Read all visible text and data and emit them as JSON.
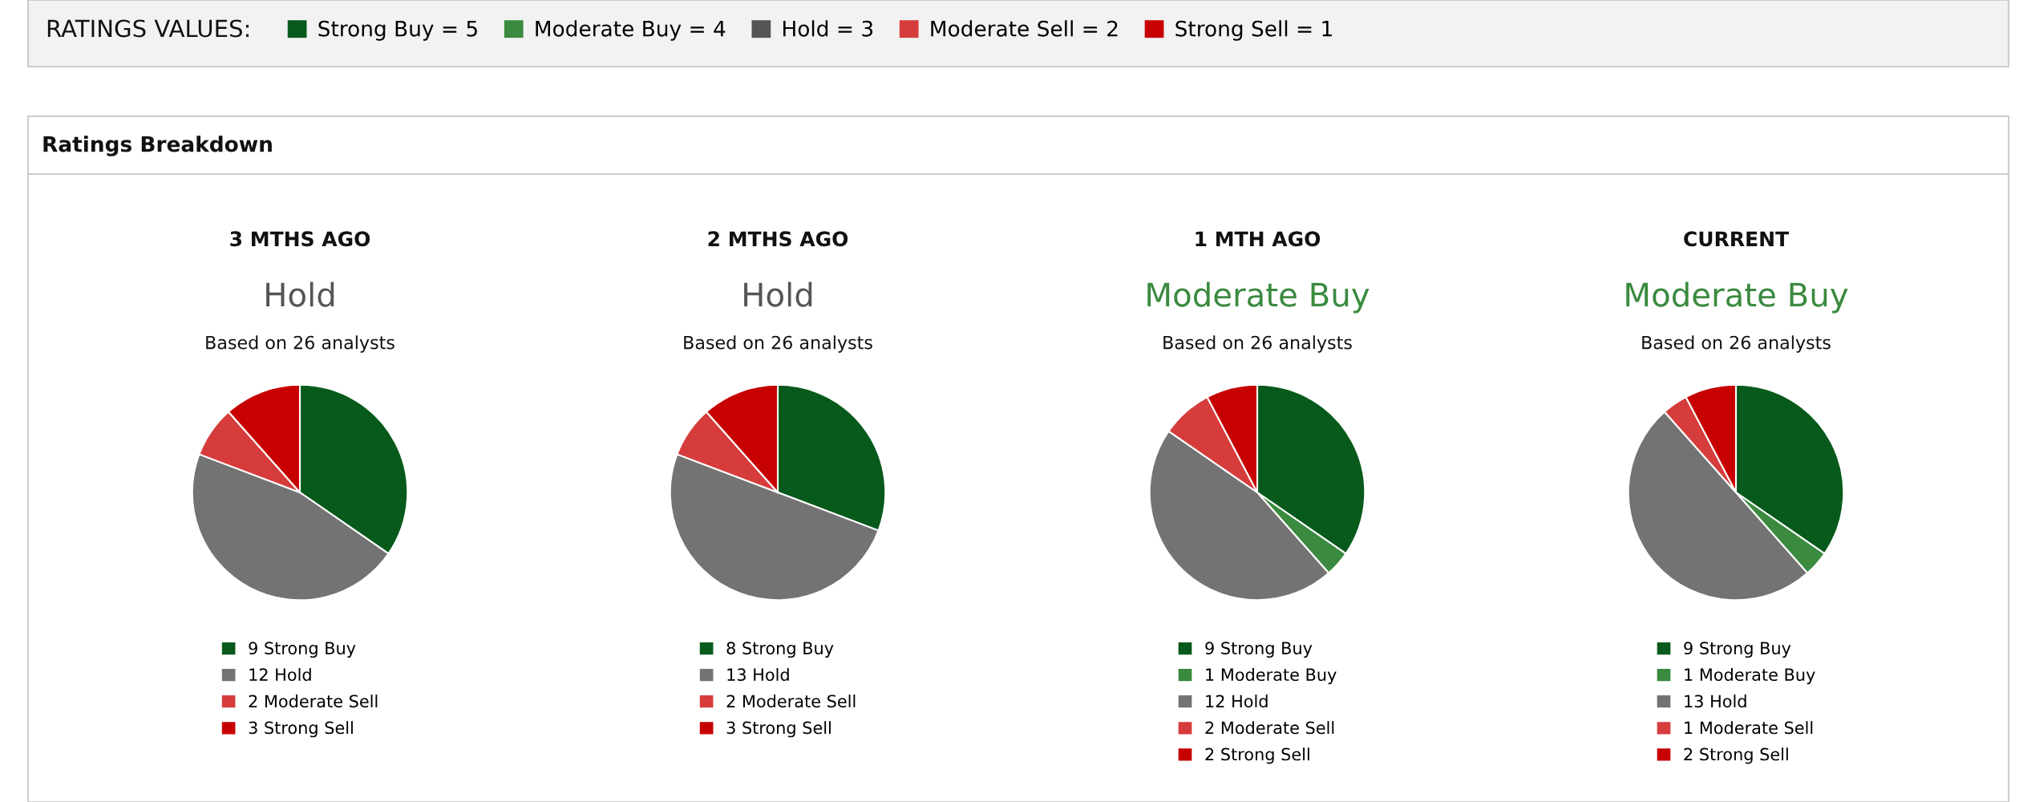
{
  "chart_data": [
    {
      "type": "other",
      "title": "RATINGS VALUES:",
      "categories": [
        "Strong Buy = 5",
        "Moderate Buy = 4",
        "Hold = 3",
        "Moderate Sell = 2",
        "Strong Sell = 1"
      ],
      "colors": [
        "#075a1b",
        "#3a8a3f",
        "#555555",
        "#d63c3c",
        "#c70000"
      ]
    },
    {
      "type": "other",
      "title": "Ratings Breakdown"
    },
    {
      "type": "pie",
      "title": "3 MTHS AGO",
      "subtitle": "Hold",
      "color": "#555555",
      "annotations": [
        "Based on 26 analysts"
      ],
      "categories": [
        "9 Strong Buy",
        "12 Hold",
        "2 Moderate Sell",
        "3 Strong Sell"
      ],
      "values": [
        9,
        12,
        2,
        3
      ],
      "colors": [
        "#075a1b",
        "#737373",
        "#d63c3c",
        "#c70000"
      ],
      "legend": "bottom"
    },
    {
      "type": "pie",
      "title": "2 MTHS AGO",
      "subtitle": "Hold",
      "color": "#555555",
      "annotations": [
        "Based on 26 analysts"
      ],
      "categories": [
        "8 Strong Buy",
        "13 Hold",
        "2 Moderate Sell",
        "3 Strong Sell"
      ],
      "values": [
        8,
        13,
        2,
        3
      ],
      "colors": [
        "#075a1b",
        "#737373",
        "#d63c3c",
        "#c70000"
      ],
      "legend": "bottom"
    },
    {
      "type": "pie",
      "title": "1 MTH AGO",
      "subtitle": "Moderate Buy",
      "color": "#3a8a3f",
      "annotations": [
        "Based on 26 analysts"
      ],
      "categories": [
        "9 Strong Buy",
        "1 Moderate Buy",
        "12 Hold",
        "2 Moderate Sell",
        "2 Strong Sell"
      ],
      "values": [
        9,
        1,
        12,
        2,
        2
      ],
      "colors": [
        "#075a1b",
        "#3a8a3f",
        "#737373",
        "#d63c3c",
        "#c70000"
      ],
      "legend": "bottom"
    },
    {
      "type": "pie",
      "title": "CURRENT",
      "subtitle": "Moderate Buy",
      "color": "#3a8a3f",
      "annotations": [
        "Based on 26 analysts"
      ],
      "categories": [
        "9 Strong Buy",
        "1 Moderate Buy",
        "13 Hold",
        "1 Moderate Sell",
        "2 Strong Sell"
      ],
      "values": [
        9,
        1,
        13,
        1,
        2
      ],
      "colors": [
        "#075a1b",
        "#3a8a3f",
        "#737373",
        "#d63c3c",
        "#c70000"
      ],
      "legend": "bottom"
    }
  ]
}
